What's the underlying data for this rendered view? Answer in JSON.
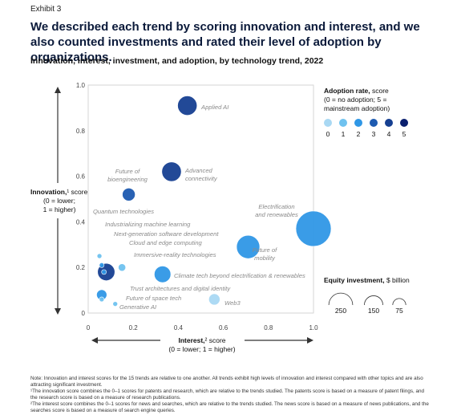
{
  "exhibit": "Exhibit 3",
  "headline": "We described each trend by scoring innovation and interest, and we also counted investments and rated their level of adoption by organizations.",
  "subtitle": "Innovation, interest, investment, and adoption, by technology trend, 2022",
  "chart_data": {
    "type": "scatter",
    "subtype": "bubble",
    "xlabel": "Interest,² score",
    "xlabel_sub": "(0 = lower; 1 = higher)",
    "ylabel": "Innovation,¹ score",
    "ylabel_sub": [
      "(0 = lower;",
      "1 = higher)"
    ],
    "xlim": [
      0,
      1
    ],
    "ylim": [
      0,
      1
    ],
    "x_ticks": [
      "0",
      "0.2",
      "0.4",
      "0.6",
      "0.8",
      "1.0"
    ],
    "y_ticks": [
      "0",
      "0.2",
      "0.4",
      "0.6",
      "0.8",
      "1.0"
    ],
    "grid": false,
    "points": [
      {
        "label": "Applied AI",
        "x": 0.44,
        "y": 0.91,
        "adoption": 4,
        "investment": 165
      },
      {
        "label": "Advanced connectivity",
        "x": 0.37,
        "y": 0.62,
        "adoption": 4,
        "investment": 166
      },
      {
        "label": "Future of bioengineering",
        "x": 0.18,
        "y": 0.52,
        "adoption": 3,
        "investment": 72
      },
      {
        "label": "Quantum technologies",
        "x": 0.05,
        "y": 0.25,
        "adoption": 1,
        "investment": 3
      },
      {
        "label": "Industrializing machine learning",
        "x": 0.06,
        "y": 0.21,
        "adoption": 2,
        "investment": 6
      },
      {
        "label": "Next-generation software development",
        "x": 0.07,
        "y": 0.18,
        "adoption": 2,
        "investment": 6
      },
      {
        "label": "Cloud and edge computing",
        "x": 0.08,
        "y": 0.18,
        "adoption": 4,
        "investment": 130
      },
      {
        "label": "Immersive-reality technologies",
        "x": 0.15,
        "y": 0.2,
        "adoption": 1,
        "investment": 24
      },
      {
        "label": "Electrification and renewables",
        "x": 1.0,
        "y": 0.37,
        "adoption": 2,
        "investment": 545
      },
      {
        "label": "Future of mobility",
        "x": 0.71,
        "y": 0.29,
        "adoption": 2,
        "investment": 236
      },
      {
        "label": "Climate tech beyond electrification & renewables",
        "x": 0.33,
        "y": 0.17,
        "adoption": 2,
        "investment": 120
      },
      {
        "label": "Trust architectures and digital identity",
        "x": 0.06,
        "y": 0.08,
        "adoption": 2,
        "investment": 46
      },
      {
        "label": "Future of space tech",
        "x": 0.06,
        "y": 0.06,
        "adoption": 1,
        "investment": 8
      },
      {
        "label": "Generative AI",
        "x": 0.12,
        "y": 0.04,
        "adoption": 1,
        "investment": 3
      },
      {
        "label": "Web3",
        "x": 0.56,
        "y": 0.06,
        "adoption": 0,
        "investment": 55
      }
    ],
    "legend_adoption": {
      "title": "Adoption rate,",
      "title_suffix": "score",
      "subtitle": [
        "(0 = no adoption; 5 =",
        "mainstream adoption)"
      ],
      "levels": [
        "0",
        "1",
        "2",
        "3",
        "4",
        "5"
      ],
      "colors": [
        "#a9d8f3",
        "#6fc2ef",
        "#2f97e6",
        "#1d5ab0",
        "#163f91",
        "#0a1f6e"
      ],
      "placement": "top-right"
    },
    "legend_investment": {
      "title": "Equity investment,",
      "title_suffix": "$ billion",
      "values": [
        250,
        150,
        75
      ],
      "labels": [
        "250",
        "150",
        "75"
      ],
      "placement": "right"
    }
  },
  "notes": [
    "Note: Innovation and interest scores for the 15 trends are relative to one another. All trends exhibit high levels of innovation and interest compared with other topics and are also attracting significant investment.",
    "¹The innovation score combines the 0–1 scores for patents and research, which are relative to the trends studied. The patents score is based on a measure of patent filings, and the research score is based on a measure of research publications.",
    "²The interest score combines the 0–1 scores for news and searches, which are relative to the trends studied. The news score is based on a measure of news publications, and the searches score is based on a measure of search engine queries."
  ]
}
